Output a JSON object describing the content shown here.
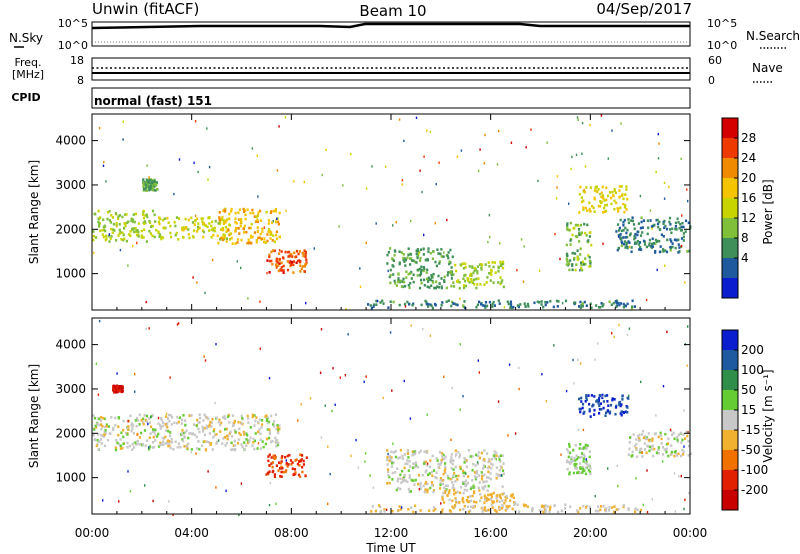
{
  "header": {
    "title": "Unwin (fitACF)",
    "beam": "Beam 10",
    "date": "04/Sep/2017"
  },
  "sky_panel": {
    "label": "N.Sky",
    "left_ticks": [
      "10^5",
      "10^0"
    ],
    "right_ticks": [
      "10^5",
      "10^0"
    ],
    "right_label": "N.Search"
  },
  "freq_panel": {
    "label_line1": "Freq.",
    "label_line2": "[MHz]",
    "left_ticks": [
      "18",
      "8"
    ],
    "right_ticks": [
      "60",
      "0"
    ],
    "right_label": "Nave"
  },
  "cpid_panel": {
    "label": "CPID",
    "value": "normal (fast) 151"
  },
  "power_panel": {
    "ylabel": "Slant Range [km]",
    "colorbar_label": "Power [dB]",
    "colorbar_ticks": [
      "28",
      "24",
      "20",
      "16",
      "12",
      "8",
      "4"
    ],
    "colorbar_colors": [
      "#d40000",
      "#ee3a00",
      "#f08a00",
      "#f5c400",
      "#c8d400",
      "#7fbf3a",
      "#3f8f5a",
      "#1f5a9f",
      "#0a1ed0"
    ]
  },
  "velocity_panel": {
    "ylabel": "Slant Range [km]",
    "colorbar_label": "Velocity [m s⁻¹]",
    "colorbar_ticks": [
      "200",
      "100",
      "50",
      "15",
      "-15",
      "-50",
      "-100",
      "-200"
    ],
    "colorbar_colors": [
      "#0a1ed0",
      "#1f5aa0",
      "#2f8f4a",
      "#66cc33",
      "#c8c8c8",
      "#f0b030",
      "#f07000",
      "#e02000",
      "#c80000"
    ]
  },
  "x_axis": {
    "label": "Time UT",
    "ticks": [
      "00:00",
      "04:00",
      "08:00",
      "12:00",
      "16:00",
      "20:00",
      "00:00"
    ]
  },
  "chart_data": [
    {
      "type": "heatmap",
      "title": "Power [dB]",
      "xlabel": "Time UT",
      "ylabel": "Slant Range [km]",
      "xlim": [
        0,
        24
      ],
      "ylim": [
        180,
        4600
      ],
      "yticks": [
        1000,
        2000,
        3000,
        4000
      ],
      "clim": [
        0,
        32
      ],
      "regions": [
        {
          "t0": 0.0,
          "t1": 2.5,
          "r0": 1750,
          "r1": 2450,
          "v": 14
        },
        {
          "t0": 2.5,
          "t1": 5.5,
          "r0": 1800,
          "r1": 2300,
          "v": 16
        },
        {
          "t0": 5.0,
          "t1": 7.5,
          "r0": 1700,
          "r1": 2500,
          "v": 20
        },
        {
          "t0": 7.0,
          "t1": 8.6,
          "r0": 1050,
          "r1": 1550,
          "v": 26
        },
        {
          "t0": 2.0,
          "t1": 2.6,
          "r0": 2900,
          "r1": 3150,
          "v": 10
        },
        {
          "t0": 11.8,
          "t1": 14.5,
          "r0": 700,
          "r1": 1600,
          "v": 10
        },
        {
          "t0": 14.5,
          "t1": 16.5,
          "r0": 700,
          "r1": 1300,
          "v": 14
        },
        {
          "t0": 19.0,
          "t1": 20.0,
          "r0": 1100,
          "r1": 2200,
          "v": 12
        },
        {
          "t0": 19.5,
          "t1": 21.5,
          "r0": 2400,
          "r1": 3000,
          "v": 18
        },
        {
          "t0": 21.0,
          "t1": 24.0,
          "r0": 1500,
          "r1": 2300,
          "v": 8
        },
        {
          "t0": 11.0,
          "t1": 22.0,
          "r0": 250,
          "r1": 420,
          "v": 8
        }
      ]
    },
    {
      "type": "heatmap",
      "title": "Velocity [m s⁻¹]",
      "xlabel": "Time UT",
      "ylabel": "Slant Range [km]",
      "xlim": [
        0,
        24
      ],
      "ylim": [
        180,
        4600
      ],
      "yticks": [
        1000,
        2000,
        3000,
        4000
      ],
      "clim": [
        -250,
        250
      ],
      "regions": [
        {
          "t0": 0.0,
          "t1": 7.5,
          "r0": 1650,
          "r1": 2450,
          "v": 0
        },
        {
          "t0": 7.0,
          "t1": 8.6,
          "r0": 1050,
          "r1": 1550,
          "v": -150
        },
        {
          "t0": 0.8,
          "t1": 1.2,
          "r0": 2950,
          "r1": 3100,
          "v": -200
        },
        {
          "t0": 11.8,
          "t1": 16.5,
          "r0": 700,
          "r1": 1650,
          "v": 0
        },
        {
          "t0": 14.0,
          "t1": 17.0,
          "r0": 450,
          "r1": 700,
          "v": -40
        },
        {
          "t0": 19.5,
          "t1": 21.5,
          "r0": 2400,
          "r1": 2900,
          "v": 200
        },
        {
          "t0": 19.0,
          "t1": 20.0,
          "r0": 1100,
          "r1": 1800,
          "v": 30
        },
        {
          "t0": 21.5,
          "t1": 24.0,
          "r0": 1500,
          "r1": 2100,
          "v": 0
        },
        {
          "t0": 11.0,
          "t1": 22.0,
          "r0": 250,
          "r1": 420,
          "v": -30
        }
      ]
    }
  ]
}
